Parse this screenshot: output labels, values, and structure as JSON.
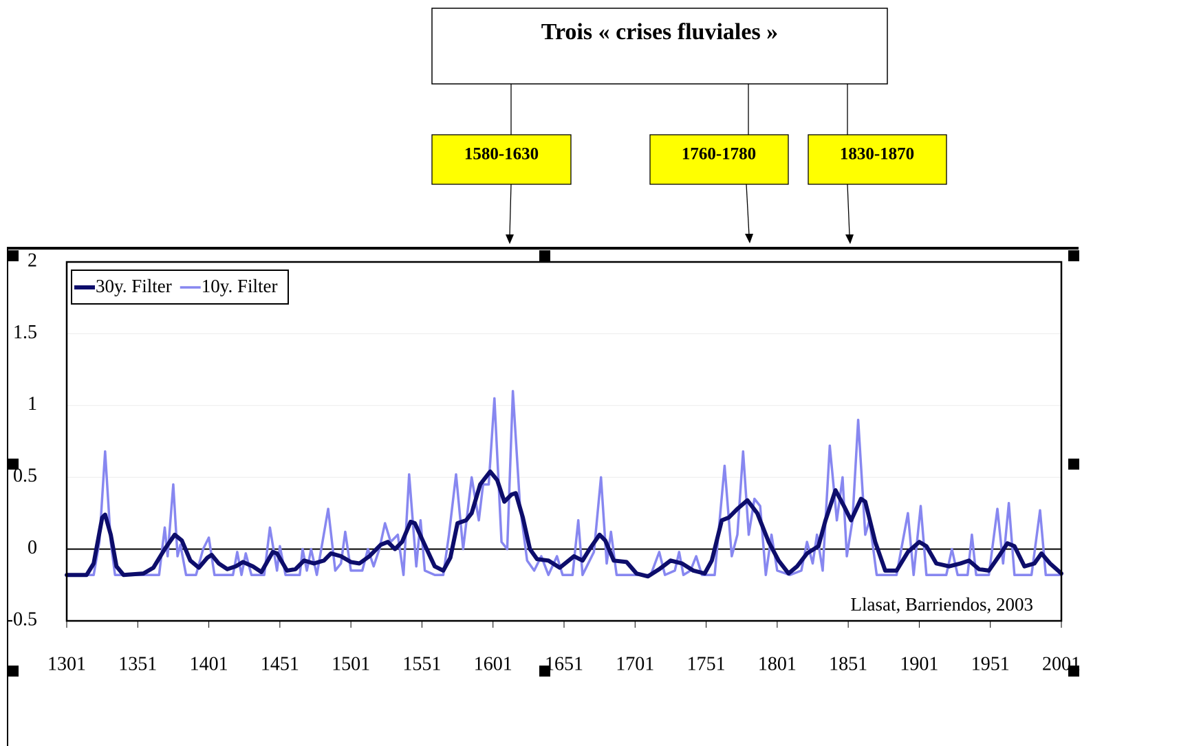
{
  "chart_data": {
    "type": "line",
    "title": "Trois « crises fluviales »",
    "annotations": [
      "1580-1630",
      "1760-1780",
      "1830-1870"
    ],
    "source": "Llasat, Barriendos, 2003",
    "xlim": [
      1301,
      2001
    ],
    "xticks": [
      1301,
      1351,
      1401,
      1451,
      1501,
      1551,
      1601,
      1651,
      1701,
      1751,
      1801,
      1851,
      1901,
      1951,
      2001
    ],
    "ylim": [
      -0.5,
      2
    ],
    "yticks": [
      2,
      1.5,
      1,
      0.5,
      0,
      -0.5
    ],
    "grid": true,
    "legend": "top-left",
    "series": [
      {
        "name": "30y. Filter",
        "color": "#0d0d6b",
        "x": [
          1301,
          1315,
          1320,
          1326,
          1328,
          1332,
          1336,
          1341,
          1355,
          1362,
          1370,
          1377,
          1382,
          1388,
          1394,
          1400,
          1403,
          1408,
          1414,
          1420,
          1425,
          1432,
          1438,
          1446,
          1449,
          1456,
          1462,
          1468,
          1475,
          1482,
          1487,
          1494,
          1501,
          1507,
          1514,
          1522,
          1527,
          1532,
          1537,
          1543,
          1546,
          1552,
          1560,
          1566,
          1571,
          1576,
          1582,
          1586,
          1592,
          1599,
          1604,
          1609,
          1614,
          1617,
          1622,
          1627,
          1632,
          1640,
          1648,
          1658,
          1664,
          1669,
          1676,
          1680,
          1686,
          1695,
          1702,
          1710,
          1718,
          1726,
          1734,
          1742,
          1750,
          1755,
          1762,
          1767,
          1773,
          1780,
          1787,
          1795,
          1802,
          1809,
          1815,
          1822,
          1830,
          1835,
          1842,
          1848,
          1853,
          1860,
          1863,
          1870,
          1877,
          1885,
          1893,
          1901,
          1906,
          1913,
          1922,
          1930,
          1936,
          1943,
          1950,
          1957,
          1963,
          1968,
          1975,
          1982,
          1987,
          1993,
          2001
        ],
        "values": [
          -0.18,
          -0.18,
          -0.1,
          0.22,
          0.24,
          0.1,
          -0.12,
          -0.18,
          -0.17,
          -0.13,
          0.0,
          0.1,
          0.06,
          -0.08,
          -0.13,
          -0.06,
          -0.04,
          -0.1,
          -0.14,
          -0.12,
          -0.09,
          -0.12,
          -0.16,
          -0.02,
          -0.03,
          -0.15,
          -0.14,
          -0.08,
          -0.1,
          -0.08,
          -0.03,
          -0.05,
          -0.09,
          -0.1,
          -0.05,
          0.03,
          0.05,
          0.0,
          0.05,
          0.19,
          0.18,
          0.05,
          -0.12,
          -0.15,
          -0.06,
          0.18,
          0.2,
          0.25,
          0.45,
          0.54,
          0.48,
          0.33,
          0.38,
          0.39,
          0.22,
          0.0,
          -0.07,
          -0.08,
          -0.13,
          -0.05,
          -0.08,
          0.0,
          0.1,
          0.06,
          -0.08,
          -0.09,
          -0.17,
          -0.19,
          -0.14,
          -0.08,
          -0.1,
          -0.15,
          -0.17,
          -0.08,
          0.2,
          0.22,
          0.28,
          0.34,
          0.25,
          0.05,
          -0.08,
          -0.17,
          -0.12,
          -0.03,
          0.02,
          0.2,
          0.41,
          0.3,
          0.2,
          0.35,
          0.33,
          0.05,
          -0.15,
          -0.15,
          -0.02,
          0.05,
          0.02,
          -0.1,
          -0.12,
          -0.1,
          -0.08,
          -0.14,
          -0.15,
          -0.05,
          0.04,
          0.02,
          -0.12,
          -0.1,
          -0.03,
          -0.1,
          -0.17
        ]
      },
      {
        "name": "10y. Filter",
        "color": "#8787f0",
        "x": [
          1301,
          1320,
          1324,
          1328,
          1332,
          1335,
          1366,
          1370,
          1372,
          1376,
          1379,
          1381,
          1385,
          1392,
          1397,
          1401,
          1405,
          1418,
          1421,
          1424,
          1427,
          1431,
          1440,
          1444,
          1449,
          1451,
          1455,
          1465,
          1467,
          1470,
          1473,
          1477,
          1485,
          1490,
          1494,
          1497,
          1501,
          1509,
          1513,
          1517,
          1521,
          1525,
          1529,
          1534,
          1538,
          1542,
          1547,
          1550,
          1553,
          1560,
          1566,
          1570,
          1575,
          1580,
          1586,
          1591,
          1594,
          1598,
          1602,
          1607,
          1611,
          1615,
          1620,
          1625,
          1630,
          1635,
          1640,
          1646,
          1650,
          1657,
          1661,
          1664,
          1672,
          1677,
          1681,
          1684,
          1688,
          1700,
          1712,
          1718,
          1722,
          1729,
          1732,
          1735,
          1740,
          1744,
          1748,
          1757,
          1764,
          1769,
          1773,
          1777,
          1781,
          1785,
          1789,
          1793,
          1797,
          1801,
          1810,
          1818,
          1822,
          1826,
          1829,
          1833,
          1838,
          1843,
          1847,
          1850,
          1854,
          1858,
          1863,
          1866,
          1871,
          1885,
          1893,
          1897,
          1902,
          1906,
          1920,
          1924,
          1928,
          1935,
          1938,
          1941,
          1950,
          1956,
          1960,
          1964,
          1968,
          1980,
          1986,
          1990,
          2001
        ],
        "values": [
          -0.18,
          -0.18,
          0.05,
          0.68,
          0.05,
          -0.18,
          -0.18,
          0.15,
          -0.05,
          0.45,
          -0.05,
          0.03,
          -0.18,
          -0.18,
          0.0,
          0.08,
          -0.18,
          -0.18,
          -0.02,
          -0.18,
          -0.03,
          -0.18,
          -0.18,
          0.15,
          -0.15,
          0.02,
          -0.18,
          -0.18,
          0.0,
          -0.15,
          0.0,
          -0.18,
          0.28,
          -0.15,
          -0.1,
          0.12,
          -0.15,
          -0.15,
          0.0,
          -0.12,
          0.0,
          0.18,
          0.05,
          0.1,
          -0.18,
          0.52,
          -0.12,
          0.2,
          -0.15,
          -0.18,
          -0.18,
          0.1,
          0.52,
          0.0,
          0.5,
          0.2,
          0.45,
          0.45,
          1.05,
          0.05,
          0.0,
          1.1,
          0.3,
          -0.08,
          -0.15,
          -0.05,
          -0.18,
          -0.05,
          -0.18,
          -0.18,
          0.2,
          -0.18,
          -0.02,
          0.5,
          -0.1,
          0.12,
          -0.18,
          -0.18,
          -0.18,
          -0.02,
          -0.18,
          -0.15,
          -0.02,
          -0.18,
          -0.15,
          -0.05,
          -0.18,
          -0.18,
          0.58,
          -0.05,
          0.1,
          0.68,
          0.1,
          0.35,
          0.3,
          -0.18,
          0.1,
          -0.15,
          -0.18,
          -0.15,
          0.05,
          -0.1,
          0.1,
          -0.15,
          0.72,
          0.2,
          0.5,
          -0.05,
          0.2,
          0.9,
          0.1,
          0.2,
          -0.18,
          -0.18,
          0.25,
          -0.18,
          0.3,
          -0.18,
          -0.18,
          0.0,
          -0.18,
          -0.18,
          0.1,
          -0.18,
          -0.18,
          0.28,
          -0.1,
          0.32,
          -0.18,
          -0.18,
          0.27,
          -0.18,
          -0.18
        ]
      }
    ]
  }
}
